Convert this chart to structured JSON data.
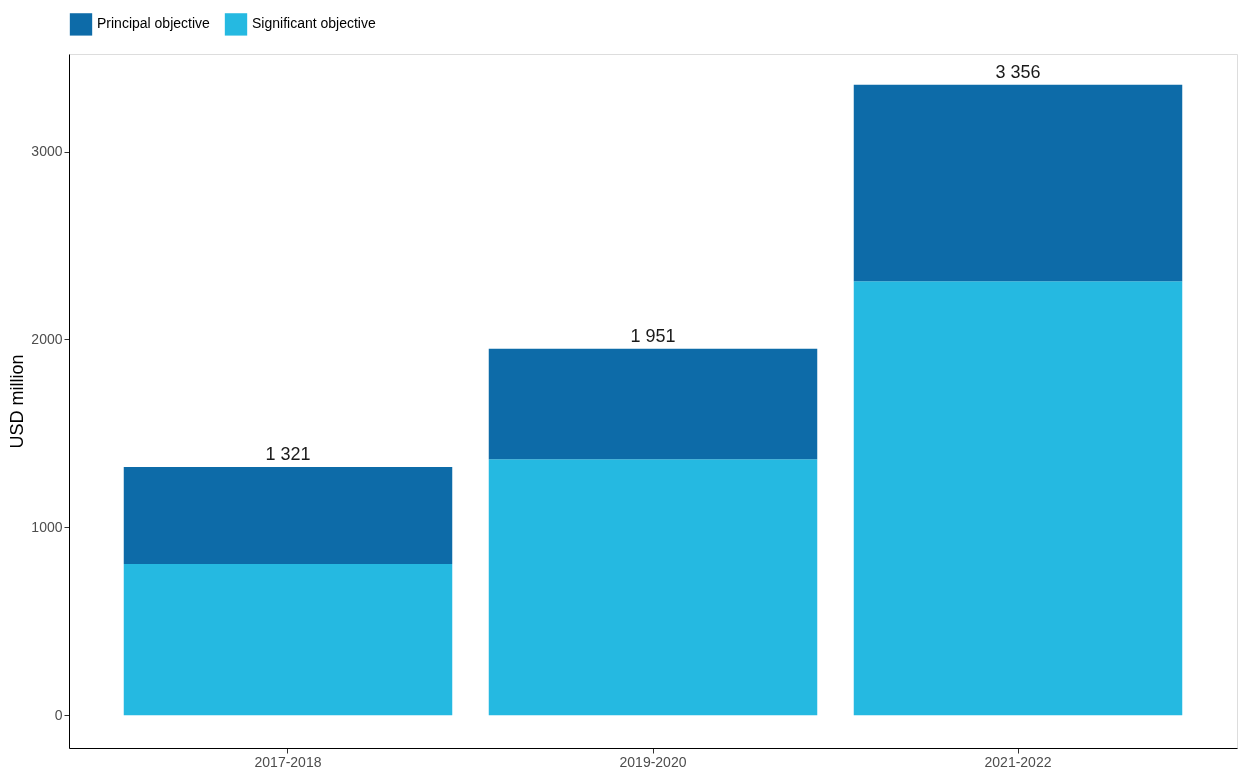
{
  "chart_data": {
    "type": "bar",
    "stacked": true,
    "ylabel": "USD million",
    "categories": [
      "2017-2018",
      "2019-2020",
      "2021-2022"
    ],
    "series": [
      {
        "name": "Significant objective",
        "color": "#25b9e1",
        "values": [
          805,
          1363,
          2310
        ]
      },
      {
        "name": "Principal objective",
        "color": "#0d6ba8",
        "values": [
          516,
          588,
          1046
        ]
      }
    ],
    "totals": [
      "1 321",
      "1 951",
      "3 356"
    ],
    "ylim": [
      -175,
      3520
    ],
    "yticks": [
      0,
      1000,
      2000,
      3000
    ],
    "grid": false,
    "legend": "top"
  }
}
